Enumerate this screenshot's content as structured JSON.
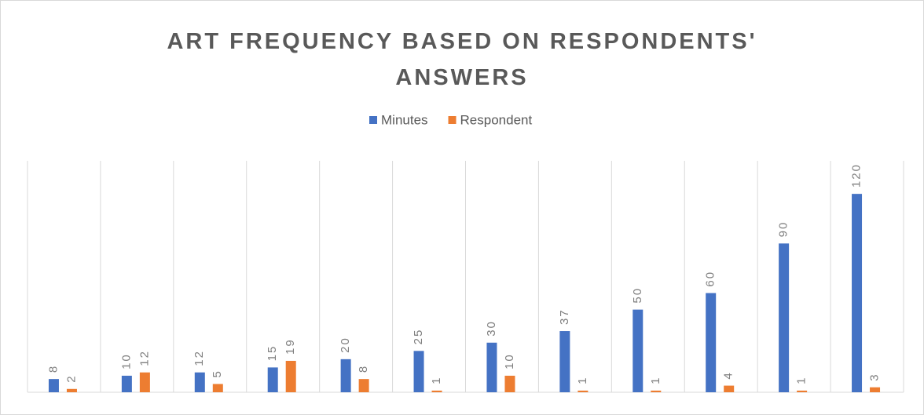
{
  "chart_data": {
    "type": "bar",
    "title": "ART FREQUENCY BASED ON RESPONDENTS' ANSWERS",
    "categories": [
      null,
      null,
      null,
      null,
      null,
      null,
      null,
      null,
      null,
      null,
      null,
      null
    ],
    "series": [
      {
        "name": "Minutes",
        "color": "#4472c4",
        "values": [
          8,
          10,
          12,
          15,
          20,
          25,
          30,
          37,
          50,
          60,
          90,
          120
        ]
      },
      {
        "name": "Respondent",
        "color": "#ed7d31",
        "values": [
          2,
          12,
          5,
          19,
          8,
          1,
          10,
          1,
          1,
          4,
          1,
          3
        ]
      }
    ],
    "ylim": [
      0,
      140
    ],
    "legend": "top",
    "data_labels": true
  }
}
